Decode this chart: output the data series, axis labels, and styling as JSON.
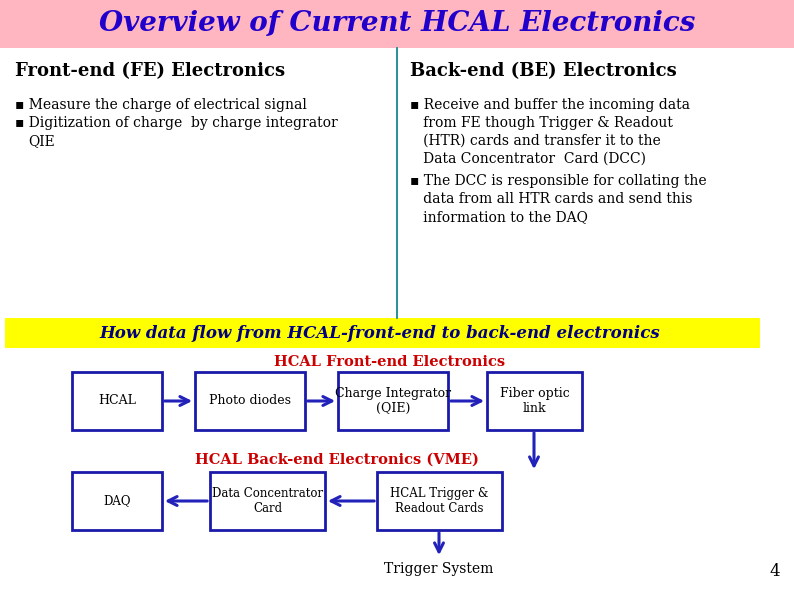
{
  "title": "Overview of Current HCAL Electronics",
  "title_color": "#2200CC",
  "title_bg": "#FFB6C1",
  "title_fontsize": 20,
  "fe_header": "Front-end (FE) Electronics",
  "be_header": "Back-end (BE) Electronics",
  "flow_title": "How data flow from HCAL-front-end to back-end electronics",
  "flow_title_bg": "#FFFF00",
  "flow_title_color": "#000080",
  "fe_section_label": "HCAL Front-end Electronics",
  "be_section_label": "HCAL Back-end Electronics (VME)",
  "section_label_color": "#CC0000",
  "box_color": "#1a1aaa",
  "box_fill": "#FFFFFF",
  "arrow_color": "#2222BB",
  "fe_boxes": [
    "HCAL",
    "Photo diodes",
    "Charge Integrator\n(QIE)",
    "Fiber optic\nlink"
  ],
  "be_boxes": [
    "DAQ",
    "Data Concentrator\nCard",
    "HCAL Trigger &\nReadout Cards"
  ],
  "trigger_label": "Trigger System",
  "page_number": "4",
  "bg_color": "#FFFFFF",
  "divider_color": "#008080",
  "bullet": "▪"
}
